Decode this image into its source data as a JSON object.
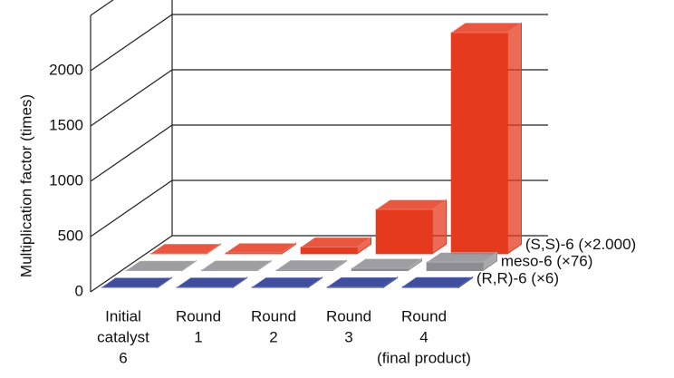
{
  "chart_data": {
    "type": "bar3d",
    "y_label": "Multiplication factor (times)",
    "categories": [
      [
        "Initial",
        "catalyst",
        "6"
      ],
      [
        "Round",
        "1"
      ],
      [
        "Round",
        "2"
      ],
      [
        "Round",
        "3"
      ],
      [
        "Round",
        "4",
        "(final product)"
      ]
    ],
    "series": [
      {
        "name": "(R,R)-6 (×6)",
        "color": "#1f2f8f",
        "values": [
          1,
          2,
          3,
          4,
          6
        ]
      },
      {
        "name": "meso-6 (×76)",
        "color": "#8c8c92",
        "values": [
          1,
          3,
          6,
          20,
          76
        ]
      },
      {
        "name": "(S,S)-6 (×2.000)",
        "color": "#e63a1e",
        "values": [
          1,
          8,
          60,
          400,
          2000
        ]
      }
    ],
    "ylim": [
      0,
      2500
    ],
    "yticks": [
      0,
      500,
      1000,
      1500,
      2000
    ],
    "grid": true
  }
}
